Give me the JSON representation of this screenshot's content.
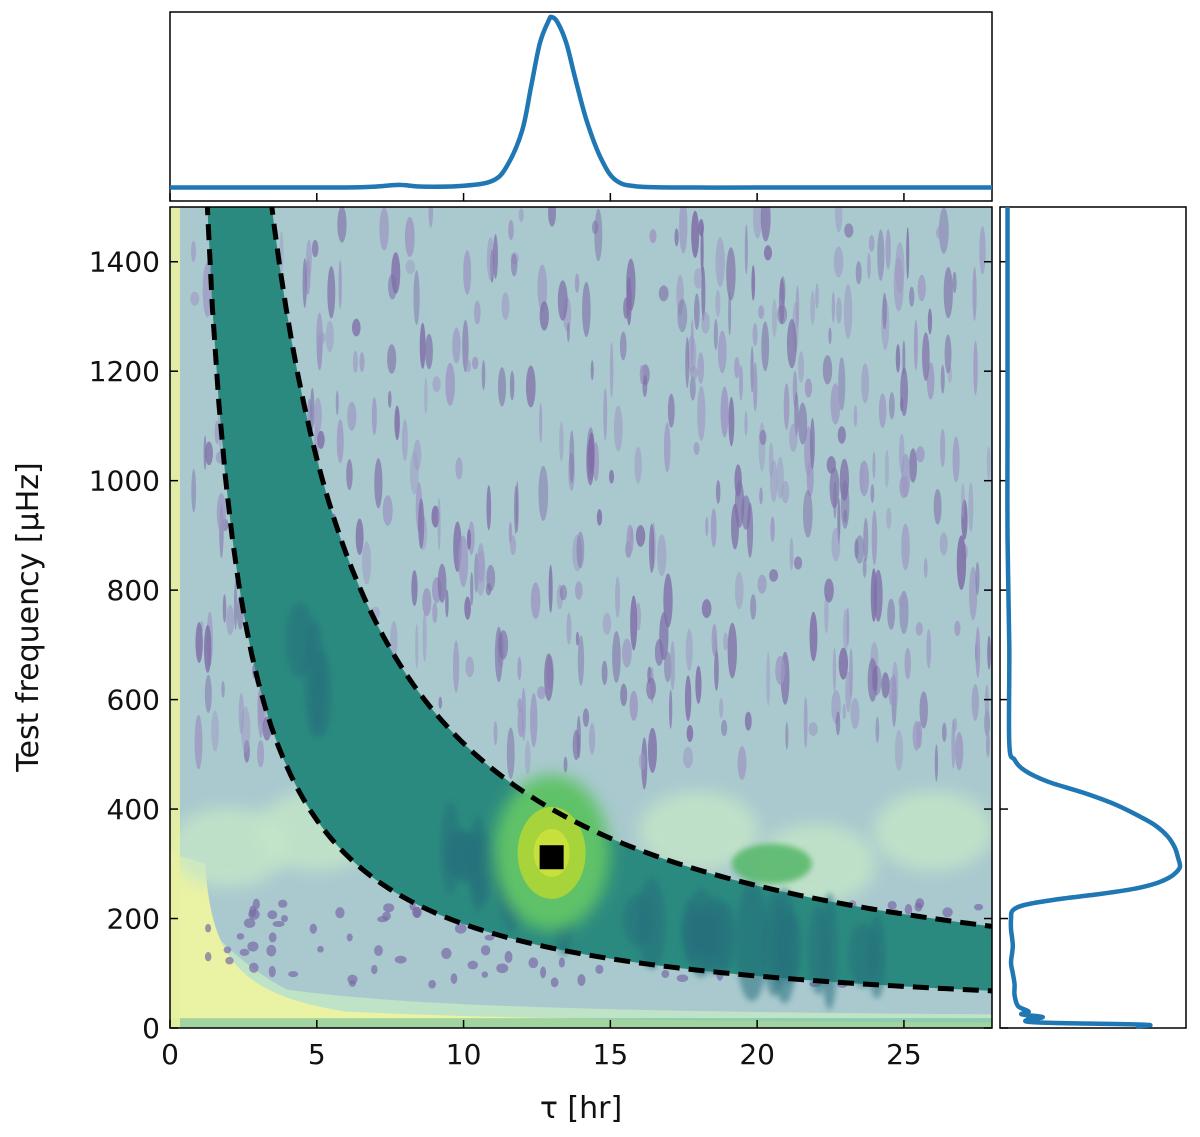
{
  "chart_data": [
    {
      "type": "heatmap",
      "panel": "main",
      "xlabel": "τ [hr]",
      "ylabel": "Test frequency [μHz]",
      "xlim": [
        0,
        28
      ],
      "ylim": [
        0,
        1500
      ],
      "xticks": [
        0,
        5,
        10,
        15,
        20,
        25
      ],
      "yticks": [
        0,
        200,
        400,
        600,
        800,
        1000,
        1200,
        1400
      ],
      "colormap": [
        "#440154",
        "#3b528b",
        "#21908d",
        "#5dc963",
        "#fde725"
      ],
      "peak_marker": {
        "x": 13.0,
        "y": 312
      },
      "dashed_bounds": [
        {
          "name": "upper",
          "tau_times_freq": 5200
        },
        {
          "name": "lower",
          "tau_times_freq": 1900
        }
      ],
      "hot_regions": [
        {
          "x": 13.0,
          "y": 320,
          "level": "high"
        },
        {
          "x": 20.5,
          "y": 300,
          "level": "mid"
        },
        {
          "x": 7.0,
          "y": 330,
          "level": "light"
        },
        {
          "x": 21.0,
          "y": 380,
          "level": "light"
        },
        {
          "x": 26.0,
          "y": 340,
          "level": "light"
        }
      ]
    },
    {
      "type": "line",
      "panel": "top-marginal",
      "x": [
        0,
        2,
        4,
        6,
        7,
        7.8,
        8.6,
        10,
        11,
        11.5,
        12,
        12.3,
        12.6,
        12.9,
        13.0,
        13.2,
        13.5,
        13.8,
        14.2,
        14.7,
        15.2,
        16,
        18,
        20,
        25,
        28
      ],
      "values": [
        0.02,
        0.02,
        0.02,
        0.02,
        0.025,
        0.035,
        0.025,
        0.03,
        0.06,
        0.15,
        0.35,
        0.6,
        0.85,
        0.98,
        1.0,
        0.97,
        0.85,
        0.65,
        0.4,
        0.18,
        0.06,
        0.025,
        0.02,
        0.02,
        0.02,
        0.02
      ],
      "xlim": [
        0,
        28
      ],
      "color": "#1f77b4"
    },
    {
      "type": "line",
      "panel": "right-marginal",
      "freq": [
        1500,
        1300,
        1100,
        900,
        700,
        520,
        490,
        470,
        450,
        430,
        410,
        390,
        370,
        350,
        330,
        310,
        295,
        285,
        275,
        265,
        255,
        245,
        235,
        225,
        215,
        200,
        180,
        150,
        120,
        100,
        80,
        60,
        40,
        30,
        25,
        20,
        15,
        10,
        6,
        3
      ],
      "values": [
        0.02,
        0.02,
        0.02,
        0.02,
        0.03,
        0.03,
        0.06,
        0.12,
        0.25,
        0.45,
        0.62,
        0.75,
        0.86,
        0.93,
        0.97,
        0.99,
        1.0,
        0.98,
        0.94,
        0.87,
        0.75,
        0.55,
        0.3,
        0.12,
        0.05,
        0.04,
        0.04,
        0.05,
        0.04,
        0.05,
        0.06,
        0.06,
        0.08,
        0.14,
        0.1,
        0.22,
        0.13,
        0.2,
        0.8,
        0.75
      ],
      "ylim": [
        0,
        1500
      ],
      "color": "#1f77b4"
    }
  ]
}
